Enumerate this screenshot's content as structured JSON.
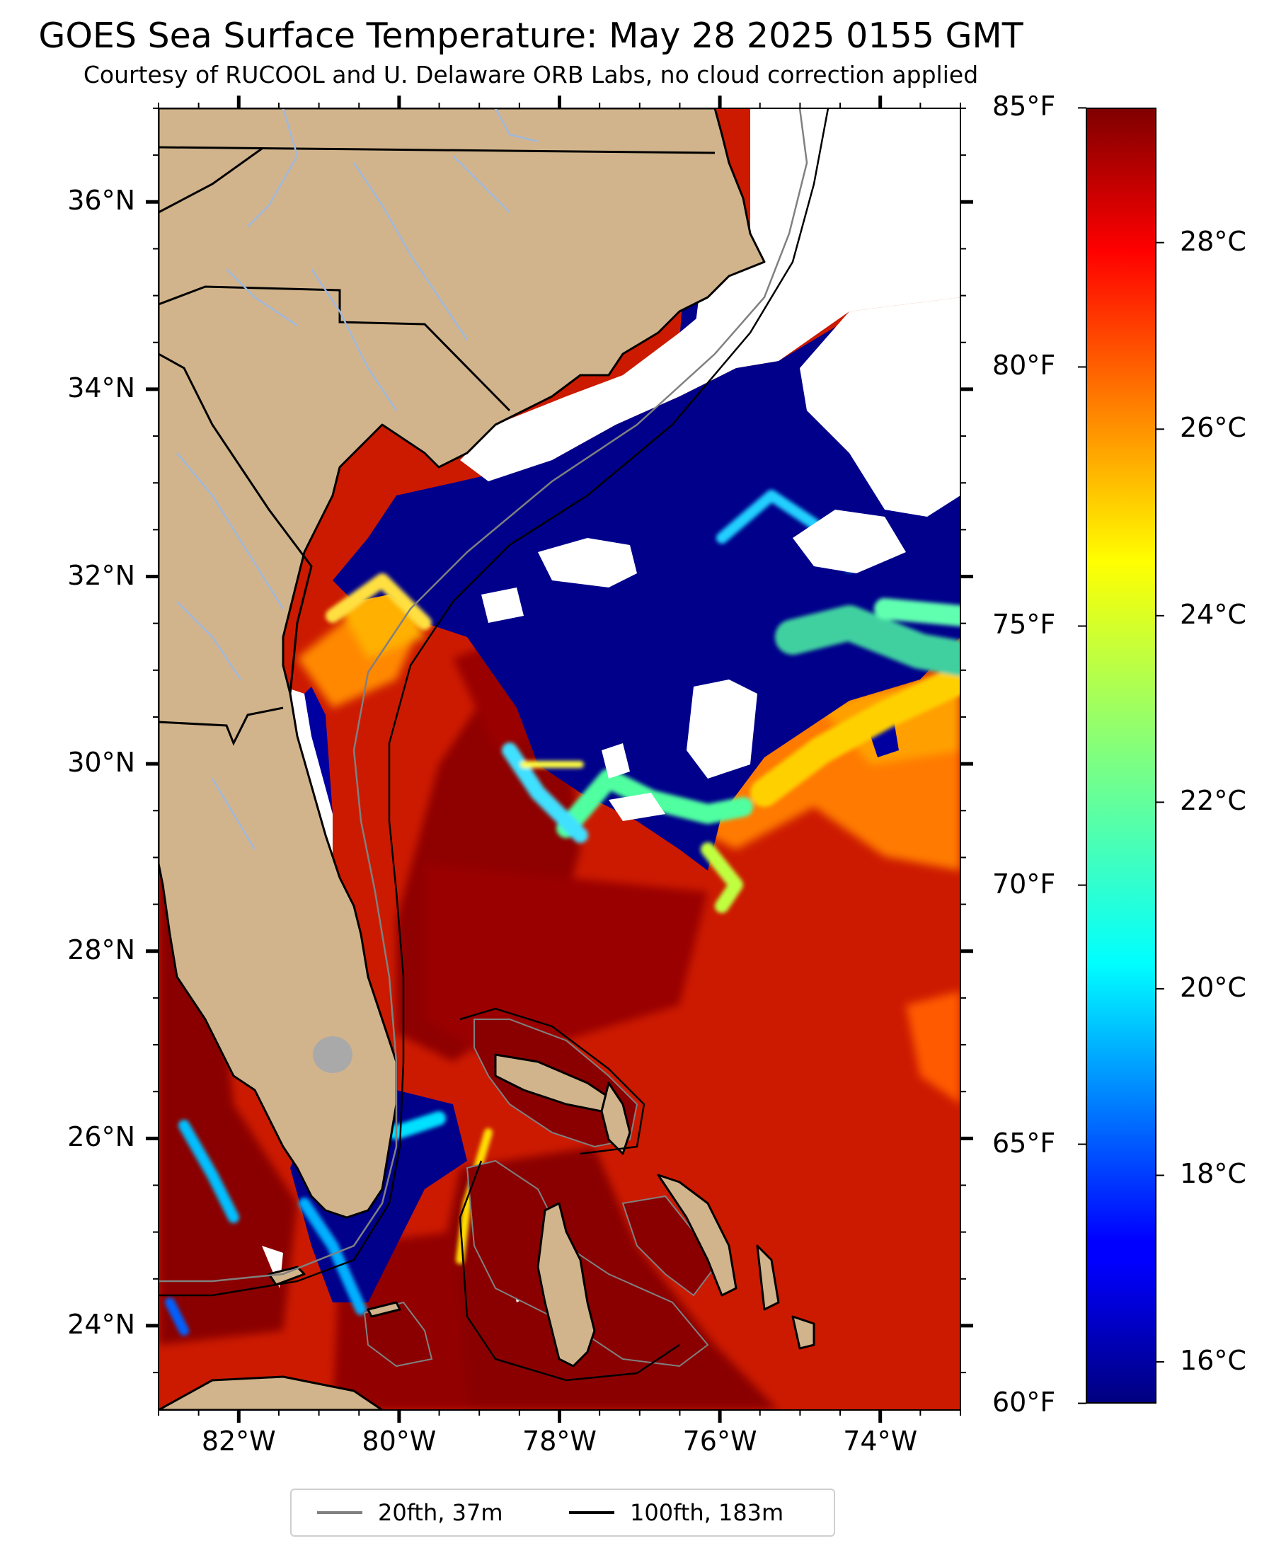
{
  "title": "GOES Sea Surface Temperature: May 28 2025 0155 GMT",
  "subtitle": "Courtesy of RUCOOL and U. Delaware ORB Labs, no cloud correction applied",
  "map": {
    "extent": {
      "lon_min": -83,
      "lon_max": -73,
      "lat_min": 23.1,
      "lat_max": 37.0
    },
    "lat_ticks": [
      {
        "value": 36,
        "label": "36°N"
      },
      {
        "value": 34,
        "label": "34°N"
      },
      {
        "value": 32,
        "label": "32°N"
      },
      {
        "value": 30,
        "label": "30°N"
      },
      {
        "value": 28,
        "label": "28°N"
      },
      {
        "value": 26,
        "label": "26°N"
      },
      {
        "value": 24,
        "label": "24°N"
      }
    ],
    "lon_ticks": [
      {
        "value": -82,
        "label": "82°W"
      },
      {
        "value": -80,
        "label": "80°W"
      },
      {
        "value": -78,
        "label": "78°W"
      },
      {
        "value": -76,
        "label": "76°W"
      },
      {
        "value": -74,
        "label": "74°W"
      }
    ],
    "colors": {
      "land": "#d2b48c",
      "cloud": "#ffffff",
      "warm_water": "#cc1a00",
      "hot_water": "#8f0000",
      "cold_water": "#00008b",
      "coast": "#000000",
      "rivers": "#a0b8dc",
      "isobath_20fth": "#808080",
      "isobath_100fth": "#000000"
    }
  },
  "colorbar": {
    "colormap": "jet",
    "celsius_range": [
      15.56,
      29.44
    ],
    "fahrenheit_ticks": [
      {
        "value": 85,
        "label": "85°F"
      },
      {
        "value": 80,
        "label": "80°F"
      },
      {
        "value": 75,
        "label": "75°F"
      },
      {
        "value": 70,
        "label": "70°F"
      },
      {
        "value": 65,
        "label": "65°F"
      },
      {
        "value": 60,
        "label": "60°F"
      }
    ],
    "celsius_ticks": [
      {
        "value": 28,
        "label": "28°C"
      },
      {
        "value": 26,
        "label": "26°C"
      },
      {
        "value": 24,
        "label": "24°C"
      },
      {
        "value": 22,
        "label": "22°C"
      },
      {
        "value": 20,
        "label": "20°C"
      },
      {
        "value": 18,
        "label": "18°C"
      },
      {
        "value": 16,
        "label": "16°C"
      }
    ]
  },
  "legend": {
    "items": [
      {
        "label": "20fth, 37m",
        "color": "#808080"
      },
      {
        "label": "100fth, 183m",
        "color": "#000000"
      }
    ]
  }
}
